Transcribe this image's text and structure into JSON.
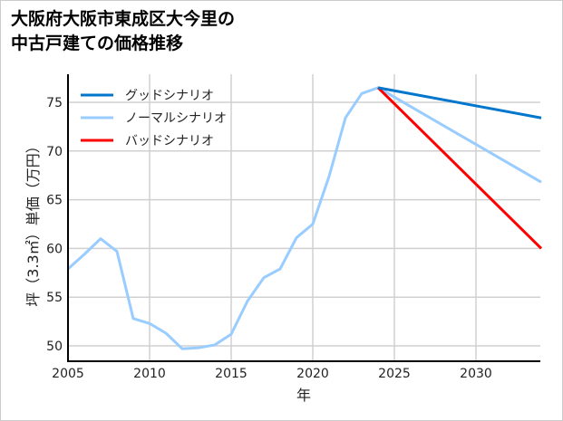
{
  "chart_data": {
    "type": "line",
    "title": "大阪府大阪市東成区大今里の\n中古戸建ての価格推移",
    "xlabel": "年",
    "ylabel": "坪（3.3㎡）単価（万円）",
    "xlim": [
      2005,
      2034
    ],
    "ylim": [
      48.5,
      77.8
    ],
    "xticks": [
      2005,
      2010,
      2015,
      2020,
      2025,
      2030
    ],
    "yticks": [
      50,
      55,
      60,
      65,
      70,
      75
    ],
    "grid": true,
    "legend": "top-left",
    "series": [
      {
        "name": "グッドシナリオ",
        "color": "#0077cc",
        "x": [
          2024,
          2034
        ],
        "y": [
          76.5,
          73.4
        ]
      },
      {
        "name": "ノーマルシナリオ",
        "color": "#99ccff",
        "x": [
          2005,
          2006,
          2007,
          2008,
          2009,
          2010,
          2011,
          2012,
          2013,
          2014,
          2015,
          2016,
          2017,
          2018,
          2019,
          2020,
          2021,
          2022,
          2023,
          2024,
          2034
        ],
        "y": [
          57.9,
          59.4,
          61.0,
          59.7,
          52.8,
          52.3,
          51.3,
          49.7,
          49.8,
          50.1,
          51.2,
          54.6,
          57.0,
          57.9,
          61.1,
          62.5,
          67.4,
          73.4,
          75.9,
          76.5,
          66.8
        ]
      },
      {
        "name": "バッドシナリオ",
        "color": "#ff0000",
        "x": [
          2024,
          2034
        ],
        "y": [
          76.5,
          60.0
        ]
      }
    ]
  }
}
